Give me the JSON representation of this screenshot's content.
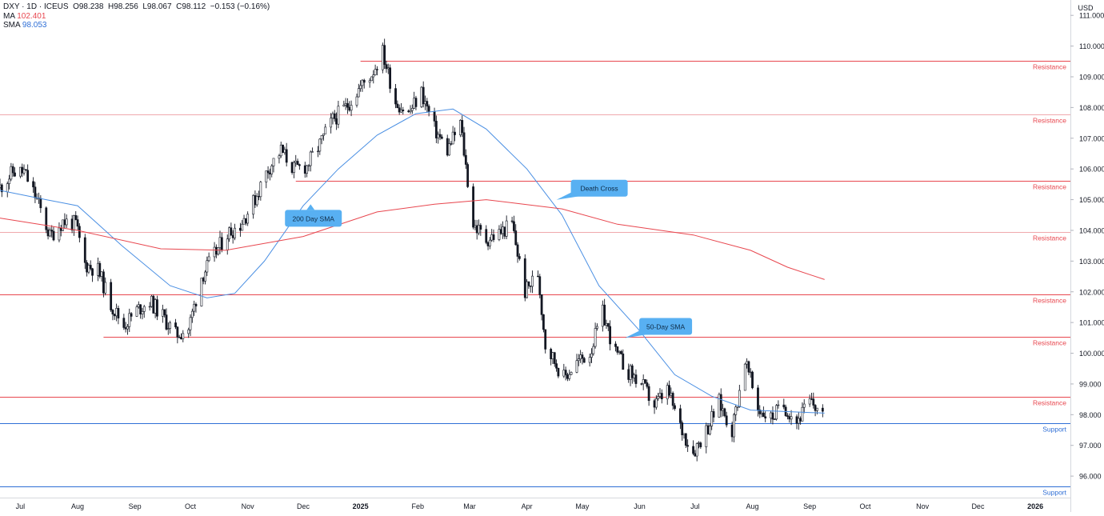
{
  "header": {
    "symbol_line": "DXY · 1D · ICEUS",
    "open": "O98.238",
    "high": "H98.256",
    "low": "L98.067",
    "close": "C98.112",
    "change": "−0.153 (−0.16%)",
    "ma_label": "MA",
    "ma_value": "102.401",
    "sma_label": "SMA",
    "sma_value": "98.053"
  },
  "currency": "USD",
  "colors": {
    "resistance": "#e8474f",
    "support": "#2f6fd6",
    "sma50": "#4a8fe3",
    "sma200": "#e8474f",
    "candle": "#131722",
    "callout": "#58b0f2"
  },
  "chart_data": {
    "type": "candlestick",
    "x_range": [
      "2024-06-20",
      "2026-01-20"
    ],
    "ylim": [
      95.3,
      111.5
    ],
    "y_ticks": [
      "111.000",
      "110.000",
      "109.000",
      "108.000",
      "107.000",
      "106.000",
      "105.000",
      "104.000",
      "103.000",
      "102.000",
      "101.000",
      "100.000",
      "99.000",
      "98.000",
      "97.000",
      "96.000"
    ],
    "x_ticks": [
      {
        "date": "2024-07-01",
        "label": "Jul"
      },
      {
        "date": "2024-08-01",
        "label": "Aug"
      },
      {
        "date": "2024-09-01",
        "label": "Sep"
      },
      {
        "date": "2024-10-01",
        "label": "Oct"
      },
      {
        "date": "2024-11-01",
        "label": "Nov"
      },
      {
        "date": "2024-12-01",
        "label": "Dec"
      },
      {
        "date": "2025-01-01",
        "label": "2025"
      },
      {
        "date": "2025-02-01",
        "label": "Feb"
      },
      {
        "date": "2025-03-01",
        "label": "Mar"
      },
      {
        "date": "2025-04-01",
        "label": "Apr"
      },
      {
        "date": "2025-05-01",
        "label": "May"
      },
      {
        "date": "2025-06-01",
        "label": "Jun"
      },
      {
        "date": "2025-07-01",
        "label": "Jul"
      },
      {
        "date": "2025-08-01",
        "label": "Aug"
      },
      {
        "date": "2025-09-01",
        "label": "Sep"
      },
      {
        "date": "2025-10-01",
        "label": "Oct"
      },
      {
        "date": "2025-11-01",
        "label": "Nov"
      },
      {
        "date": "2025-12-01",
        "label": "Dec"
      },
      {
        "date": "2026-01-01",
        "label": "2026"
      }
    ],
    "levels": [
      {
        "value": 109.53,
        "label": "109.530",
        "type": "Resistance",
        "start": "2025-01-01"
      },
      {
        "value": 107.768,
        "label": "107.768",
        "type": "Resistance",
        "start": "2024-06-20"
      },
      {
        "value": 105.618,
        "label": "105.618",
        "type": "Resistance",
        "start": "2024-11-27"
      },
      {
        "value": 103.935,
        "label": "103.935",
        "type": "Resistance",
        "start": "2024-06-20"
      },
      {
        "value": 101.92,
        "label": "101.920",
        "type": "Resistance",
        "start": "2024-06-20"
      },
      {
        "value": 100.54,
        "label": "100.540",
        "type": "Resistance",
        "start": "2024-08-15"
      },
      {
        "value": 98.577,
        "label": "98.577",
        "type": "Resistance",
        "start": "2024-06-20"
      },
      {
        "value": 97.721,
        "label": "97.721",
        "type": "Support",
        "start": "2024-06-20"
      },
      {
        "value": 95.67,
        "label": "95.670",
        "type": "Support",
        "start": "2024-06-20"
      }
    ],
    "callouts": [
      {
        "text": "200 Day SMA",
        "date": "2024-12-05",
        "value": 104.9,
        "pointer": "up"
      },
      {
        "text": "Death Cross",
        "date": "2025-04-17",
        "value": 105.1,
        "pointer": "down-left"
      },
      {
        "text": "50-Day SMA",
        "date": "2025-05-24",
        "value": 100.6,
        "pointer": "down-left"
      }
    ],
    "close_path": [
      [
        "2024-06-20",
        105.4
      ],
      [
        "2024-06-27",
        105.9
      ],
      [
        "2024-07-03",
        105.9
      ],
      [
        "2024-07-10",
        105.0
      ],
      [
        "2024-07-17",
        103.8
      ],
      [
        "2024-07-24",
        104.3
      ],
      [
        "2024-07-31",
        104.2
      ],
      [
        "2024-08-05",
        102.9
      ],
      [
        "2024-08-12",
        102.7
      ],
      [
        "2024-08-19",
        101.6
      ],
      [
        "2024-08-26",
        100.9
      ],
      [
        "2024-09-02",
        101.4
      ],
      [
        "2024-09-09",
        101.7
      ],
      [
        "2024-09-16",
        101.2
      ],
      [
        "2024-09-23",
        100.6
      ],
      [
        "2024-09-30",
        100.8
      ],
      [
        "2024-10-07",
        102.5
      ],
      [
        "2024-10-14",
        103.2
      ],
      [
        "2024-10-21",
        103.9
      ],
      [
        "2024-10-28",
        104.2
      ],
      [
        "2024-11-04",
        104.9
      ],
      [
        "2024-11-12",
        106.0
      ],
      [
        "2024-11-19",
        106.6
      ],
      [
        "2024-11-26",
        106.0
      ],
      [
        "2024-12-03",
        106.1
      ],
      [
        "2024-12-10",
        106.8
      ],
      [
        "2024-12-17",
        107.6
      ],
      [
        "2024-12-24",
        108.0
      ],
      [
        "2024-12-31",
        108.6
      ],
      [
        "2025-01-07",
        109.1
      ],
      [
        "2025-01-13",
        109.8
      ],
      [
        "2025-01-20",
        108.2
      ],
      [
        "2025-01-27",
        107.8
      ],
      [
        "2025-02-03",
        108.5
      ],
      [
        "2025-02-10",
        107.3
      ],
      [
        "2025-02-17",
        106.6
      ],
      [
        "2025-02-24",
        107.5
      ],
      [
        "2025-03-03",
        104.2
      ],
      [
        "2025-03-10",
        103.7
      ],
      [
        "2025-03-17",
        103.9
      ],
      [
        "2025-03-24",
        104.2
      ],
      [
        "2025-03-31",
        102.0
      ],
      [
        "2025-04-07",
        102.6
      ],
      [
        "2025-04-11",
        100.3
      ],
      [
        "2025-04-21",
        99.2
      ],
      [
        "2025-04-28",
        99.7
      ],
      [
        "2025-05-05",
        100.0
      ],
      [
        "2025-05-12",
        101.3
      ],
      [
        "2025-05-19",
        100.0
      ],
      [
        "2025-05-26",
        99.4
      ],
      [
        "2025-06-02",
        99.0
      ],
      [
        "2025-06-09",
        98.3
      ],
      [
        "2025-06-16",
        98.8
      ],
      [
        "2025-06-23",
        97.6
      ],
      [
        "2025-06-30",
        96.8
      ],
      [
        "2025-07-07",
        97.5
      ],
      [
        "2025-07-14",
        98.4
      ],
      [
        "2025-07-21",
        97.5
      ],
      [
        "2025-07-28",
        99.8
      ],
      [
        "2025-08-04",
        98.2
      ],
      [
        "2025-08-11",
        97.9
      ],
      [
        "2025-08-18",
        98.3
      ],
      [
        "2025-08-25",
        97.8
      ],
      [
        "2025-09-01",
        98.4
      ],
      [
        "2025-09-08",
        98.11
      ]
    ],
    "series": [
      {
        "name": "SMA",
        "type": "line",
        "points": [
          [
            "2024-06-20",
            105.3
          ],
          [
            "2024-07-15",
            105.0
          ],
          [
            "2024-08-01",
            104.8
          ],
          [
            "2024-08-25",
            103.5
          ],
          [
            "2024-09-20",
            102.2
          ],
          [
            "2024-10-10",
            101.8
          ],
          [
            "2024-10-25",
            101.95
          ],
          [
            "2024-11-10",
            103.0
          ],
          [
            "2024-12-01",
            104.8
          ],
          [
            "2024-12-20",
            106.0
          ],
          [
            "2025-01-10",
            107.1
          ],
          [
            "2025-01-31",
            107.8
          ],
          [
            "2025-02-20",
            107.95
          ],
          [
            "2025-03-10",
            107.3
          ],
          [
            "2025-04-01",
            106.0
          ],
          [
            "2025-04-20",
            104.5
          ],
          [
            "2025-05-10",
            102.2
          ],
          [
            "2025-05-31",
            100.8
          ],
          [
            "2025-06-20",
            99.3
          ],
          [
            "2025-07-10",
            98.6
          ],
          [
            "2025-07-31",
            98.15
          ],
          [
            "2025-08-20",
            98.1
          ],
          [
            "2025-09-09",
            98.05
          ]
        ]
      },
      {
        "name": "MA",
        "type": "line",
        "points": [
          [
            "2024-06-20",
            104.4
          ],
          [
            "2024-08-01",
            104.0
          ],
          [
            "2024-09-15",
            103.4
          ],
          [
            "2024-10-20",
            103.35
          ],
          [
            "2024-12-01",
            103.8
          ],
          [
            "2025-01-10",
            104.6
          ],
          [
            "2025-02-10",
            104.85
          ],
          [
            "2025-03-10",
            105.0
          ],
          [
            "2025-04-20",
            104.7
          ],
          [
            "2025-05-20",
            104.2
          ],
          [
            "2025-06-30",
            103.85
          ],
          [
            "2025-07-31",
            103.35
          ],
          [
            "2025-08-20",
            102.8
          ],
          [
            "2025-09-09",
            102.4
          ]
        ]
      }
    ]
  }
}
